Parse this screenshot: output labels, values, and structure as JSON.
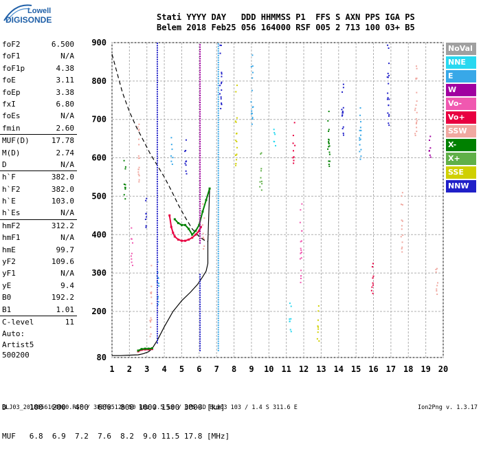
{
  "logo": {
    "line1": "Lowell",
    "line2": "DIGISONDE"
  },
  "header": {
    "row1": "Stati YYYY DAY   DDD HHMMSS P1  FFS S AXN PPS IGA PS",
    "row2": "Belem 2018 Feb25 056 164000 RSF 005 2 713 100 03+ B5"
  },
  "parameters": [
    {
      "name": "foF2",
      "value": "6.500",
      "sep": false
    },
    {
      "name": "foF1",
      "value": "N/A",
      "sep": false
    },
    {
      "name": "foF1p",
      "value": "4.38",
      "sep": false
    },
    {
      "name": "foE",
      "value": "3.11",
      "sep": false
    },
    {
      "name": "foEp",
      "value": "3.38",
      "sep": false
    },
    {
      "name": "fxI",
      "value": "6.80",
      "sep": false
    },
    {
      "name": "foEs",
      "value": "N/A",
      "sep": false
    },
    {
      "name": "fmin",
      "value": "2.60",
      "sep": false
    },
    {
      "name": "MUF(D)",
      "value": "17.78",
      "sep": true
    },
    {
      "name": "M(D)",
      "value": "2.74",
      "sep": false
    },
    {
      "name": "D",
      "value": "N/A",
      "sep": false
    },
    {
      "name": "h`F",
      "value": "382.0",
      "sep": true
    },
    {
      "name": "h`F2",
      "value": "382.0",
      "sep": false
    },
    {
      "name": "h`E",
      "value": "103.0",
      "sep": false
    },
    {
      "name": "h`Es",
      "value": "N/A",
      "sep": false
    },
    {
      "name": "hmF2",
      "value": "312.2",
      "sep": true
    },
    {
      "name": "hmF1",
      "value": "N/A",
      "sep": false
    },
    {
      "name": "hmE",
      "value": "99.7",
      "sep": false
    },
    {
      "name": "yF2",
      "value": "109.6",
      "sep": false
    },
    {
      "name": "yF1",
      "value": "N/A",
      "sep": false
    },
    {
      "name": "yE",
      "value": "9.4",
      "sep": false
    },
    {
      "name": "B0",
      "value": "192.2",
      "sep": false
    },
    {
      "name": "B1",
      "value": "1.01",
      "sep": false
    },
    {
      "name": "C-level",
      "value": "11",
      "sep": true
    }
  ],
  "autoscaling": {
    "line1": "Auto:",
    "line2": "Artist5",
    "line3": "500200"
  },
  "legend": [
    {
      "label": "NoVal",
      "color": "#a0a0a0"
    },
    {
      "label": "NNE",
      "color": "#28d8f0"
    },
    {
      "label": "E",
      "color": "#38a8e8"
    },
    {
      "label": "W",
      "color": "#a000a0"
    },
    {
      "label": "Vo-",
      "color": "#f058b0"
    },
    {
      "label": "Vo+",
      "color": "#e80040"
    },
    {
      "label": "SSW",
      "color": "#f0a8a0"
    },
    {
      "label": "X-",
      "color": "#008000"
    },
    {
      "label": "X+",
      "color": "#60b048"
    },
    {
      "label": "SSE",
      "color": "#d0d000"
    },
    {
      "label": "NNW",
      "color": "#2020c8"
    }
  ],
  "distance_table": {
    "row1": "D     100  200  400  600  800 1000 1500 3000 [km]",
    "row2": "MUF   6.8  6.9  7.2  7.6  8.2  9.0 11.5 17.8 [MHz]"
  },
  "footer": {
    "info": "BLJ03_2018056164000.RSF / 380fx512h 50 kHz 2.5 km / DPS-4D BLJ03 103 / 1.4 S 311.6 E",
    "version": "Ion2Png v. 1.3.17"
  },
  "chart_data": {
    "type": "scatter",
    "title": "",
    "xlabel": "",
    "ylabel": "",
    "xlim": [
      1,
      20
    ],
    "ylim": [
      80,
      900
    ],
    "x_ticks": [
      1,
      2,
      3,
      4,
      5,
      6,
      7,
      8,
      9,
      10,
      11,
      12,
      13,
      14,
      15,
      16,
      17,
      18,
      19,
      20
    ],
    "y_ticks": [
      80,
      200,
      300,
      400,
      500,
      600,
      700,
      800,
      900
    ],
    "series": [
      {
        "kind": "line",
        "color": "#000000",
        "dash": false,
        "x": [
          1.0,
          1.5,
          2.0,
          2.5,
          2.8,
          3.1,
          3.3,
          3.6,
          4.0,
          4.5,
          5.0,
          5.5,
          5.9,
          6.2,
          6.4,
          6.5,
          6.5,
          6.6
        ],
        "y": [
          85,
          85,
          86,
          87,
          90,
          95,
          103,
          125,
          160,
          200,
          228,
          250,
          270,
          290,
          305,
          325,
          380,
          520
        ]
      },
      {
        "kind": "line",
        "color": "#000000",
        "dash": true,
        "x": [
          1.0,
          1.3,
          1.6,
          2.0,
          2.4,
          2.8,
          3.2,
          3.6,
          4.0,
          4.4,
          4.8,
          5.2,
          5.6,
          6.0,
          6.3,
          6.5
        ],
        "y": [
          870,
          820,
          770,
          720,
          680,
          645,
          610,
          580,
          550,
          515,
          478,
          445,
          415,
          395,
          385,
          382
        ]
      },
      {
        "kind": "trace",
        "color": "#e80040",
        "x": [
          4.3,
          4.4,
          4.5,
          4.6,
          4.8,
          5.0,
          5.2,
          5.4,
          5.6,
          5.8,
          6.0,
          6.1
        ],
        "y": [
          450,
          420,
          405,
          395,
          387,
          384,
          384,
          387,
          392,
          400,
          410,
          420
        ]
      },
      {
        "kind": "trace",
        "color": "#008000",
        "x": [
          4.6,
          4.8,
          5.0,
          5.2,
          5.4,
          5.6,
          5.8,
          6.0,
          6.2,
          6.4,
          6.6
        ],
        "y": [
          440,
          430,
          425,
          425,
          415,
          400,
          410,
          425,
          460,
          490,
          520
        ]
      },
      {
        "kind": "trace",
        "color": "#e80040",
        "x": [
          2.5,
          2.7,
          2.9,
          3.1,
          3.3
        ],
        "y": [
          96,
          100,
          101,
          101,
          102
        ]
      },
      {
        "kind": "trace",
        "color": "#008000",
        "x": [
          2.5,
          2.7,
          2.9,
          3.1,
          3.3
        ],
        "y": [
          98,
          102,
          103,
          103,
          104
        ]
      },
      {
        "kind": "column",
        "color": "#a000a0",
        "x": [
          6.05
        ],
        "y": [
          [
            380,
            900
          ]
        ]
      },
      {
        "kind": "column",
        "color": "#38a8e8",
        "x": [
          7.1
        ],
        "y": [
          [
            100,
            900
          ]
        ]
      },
      {
        "kind": "column",
        "color": "#2020c8",
        "x": [
          3.6
        ],
        "y": [
          [
            120,
            900
          ]
        ]
      },
      {
        "kind": "column",
        "color": "#2020c8",
        "x": [
          6.05
        ],
        "y": [
          [
            100,
            300
          ]
        ]
      }
    ]
  }
}
